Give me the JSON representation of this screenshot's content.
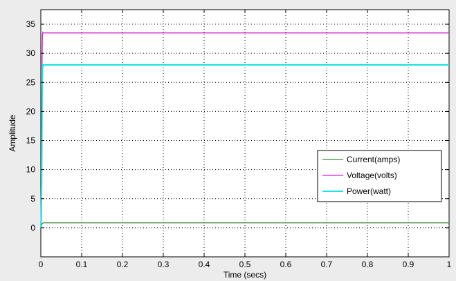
{
  "chart_data": {
    "type": "line",
    "xlabel": "Time (secs)",
    "ylabel": "Amplitude",
    "xlim": [
      0,
      1
    ],
    "ylim": [
      -5,
      37.5
    ],
    "xticks": [
      "0",
      "0.1",
      "0.2",
      "0.3",
      "0.4",
      "0.5",
      "0.6",
      "0.7",
      "0.8",
      "0.9",
      "1"
    ],
    "yticks": [
      "0",
      "5",
      "10",
      "15",
      "20",
      "25",
      "30",
      "35"
    ],
    "grid": true,
    "legend_position": "lower-right",
    "series": [
      {
        "name": "Current(amps)",
        "color": "#3c8c3c",
        "x": [
          0,
          0.002,
          0.004,
          0.006,
          0.008,
          1
        ],
        "y": [
          0,
          0.5,
          0.75,
          0.85,
          0.85,
          0.85
        ]
      },
      {
        "name": "Voltage(volts)",
        "color": "#d21ed2",
        "x": [
          0,
          0.001,
          0.002,
          0.003,
          0.004,
          0.005,
          0.006,
          1
        ],
        "y": [
          0,
          6,
          17.5,
          28,
          33.3,
          33.6,
          33.5,
          33.5
        ]
      },
      {
        "name": "Power(watt)",
        "color": "#21e1e1",
        "x": [
          0,
          0.001,
          0.002,
          0.003,
          0.004,
          0.005,
          0.006,
          1
        ],
        "y": [
          0,
          1,
          8,
          22,
          27,
          28,
          28,
          28
        ]
      }
    ]
  }
}
